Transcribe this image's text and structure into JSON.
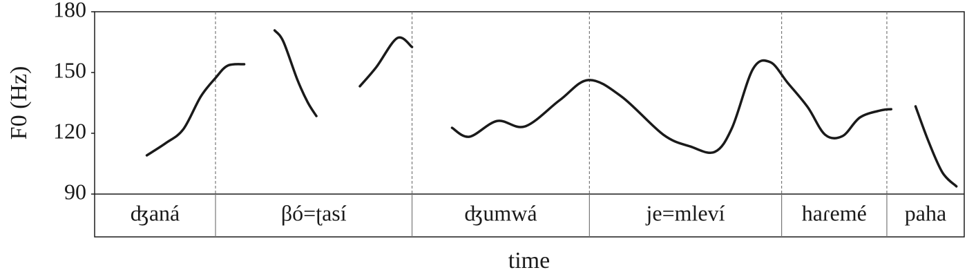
{
  "chart_data": {
    "type": "line",
    "y_label": "F0 (Hz)",
    "x_label": "time",
    "ylim": [
      90,
      180
    ],
    "yticks": [
      90,
      120,
      150,
      180
    ],
    "xlim": [
      0,
      100
    ],
    "color": "#1a1a1a",
    "series": [
      {
        "x": [
          6.0,
          8.2,
          10.2,
          12.2,
          13.9,
          15.3,
          17.2
        ],
        "values": [
          109.1,
          115.2,
          122.0,
          138.1,
          147.3,
          153.4,
          154.1
        ]
      },
      {
        "x": [
          20.7,
          21.7,
          23.3,
          24.5,
          25.5
        ],
        "values": [
          170.8,
          165.3,
          146.6,
          135.3,
          128.5
        ]
      },
      {
        "x": [
          30.5,
          32.4,
          34.8,
          36.5
        ],
        "values": [
          143.2,
          152.7,
          167.0,
          162.6
        ]
      },
      {
        "x": [
          41.1,
          43.1,
          46.3,
          49.5,
          53.5,
          56.8,
          60.6,
          65.4,
          68.5,
          71.3,
          73.3,
          75.7,
          77.7,
          79.7,
          82.0,
          84.0,
          86.0,
          88.0,
          90.4,
          91.6
        ],
        "values": [
          122.7,
          118.3,
          126.1,
          123.4,
          136.4,
          146.3,
          138.1,
          119.3,
          113.5,
          110.8,
          122.7,
          151.7,
          155.1,
          144.9,
          132.9,
          119.3,
          118.6,
          127.8,
          131.3,
          131.9
        ]
      },
      {
        "x": [
          94.4,
          95.9,
          97.5,
          99.1
        ],
        "values": [
          133.3,
          115.9,
          100.6,
          93.8
        ]
      }
    ],
    "boundaries": [
      13.9,
      36.5,
      56.9,
      79.0,
      91.1
    ],
    "words": [
      "ʤaná",
      "βó=ʈasí",
      "ʤumwá",
      "je=mleví",
      "haɾemé",
      "paha"
    ]
  }
}
